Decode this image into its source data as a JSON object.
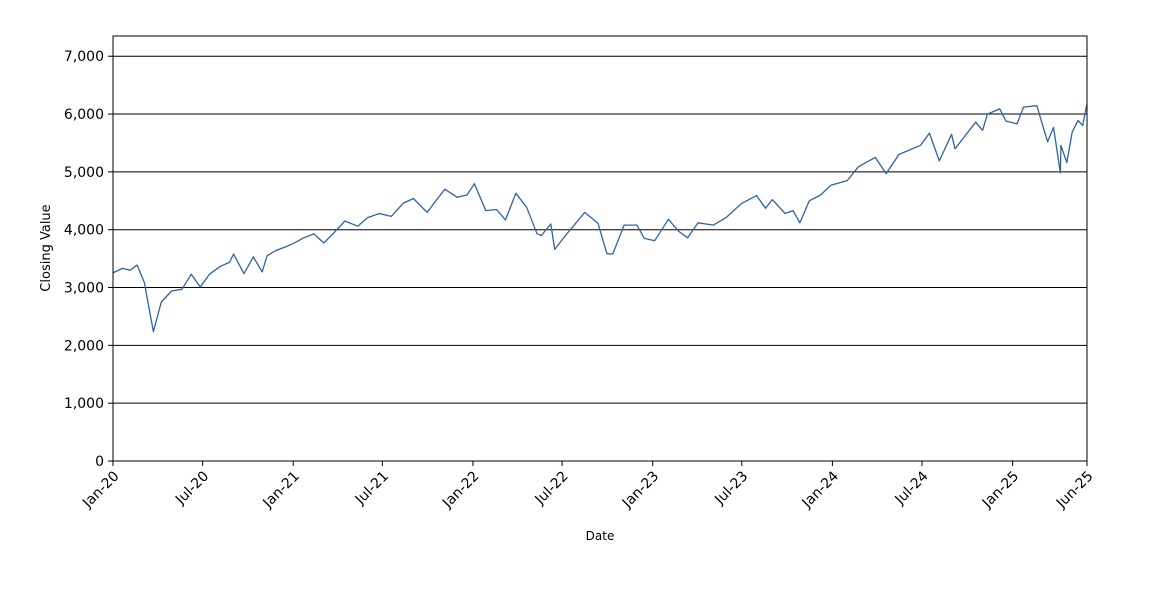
{
  "chart_data": {
    "type": "line",
    "title": "",
    "xlabel": "Date",
    "ylabel": "Closing Value",
    "xlim": [
      "2020-01-01",
      "2025-06-01"
    ],
    "ylim": [
      0,
      7350
    ],
    "grid": "horizontal",
    "legend": "none",
    "y_ticks": [
      0,
      1000,
      2000,
      3000,
      4000,
      5000,
      6000,
      7000
    ],
    "y_tick_labels": [
      "0",
      "1,000",
      "2,000",
      "3,000",
      "4,000",
      "5,000",
      "6,000",
      "7,000"
    ],
    "x_ticks": [
      "2020-01-01",
      "2020-07-01",
      "2021-01-01",
      "2021-07-01",
      "2022-01-01",
      "2022-07-01",
      "2023-01-01",
      "2023-07-01",
      "2024-01-01",
      "2024-07-01",
      "2025-01-01",
      "2025-06-01"
    ],
    "x_tick_labels": [
      "Jan-20",
      "Jul-20",
      "Jan-21",
      "Jul-21",
      "Jan-22",
      "Jul-22",
      "Jan-23",
      "Jul-23",
      "Jan-24",
      "Jul-24",
      "Jan-25",
      "Jun-25"
    ],
    "series": [
      {
        "color": "#2e63a8",
        "x": [
          "2020-01-02",
          "2020-01-20",
          "2020-02-05",
          "2020-02-19",
          "2020-03-05",
          "2020-03-12",
          "2020-03-23",
          "2020-04-08",
          "2020-04-29",
          "2020-05-20",
          "2020-06-08",
          "2020-06-26",
          "2020-07-15",
          "2020-08-05",
          "2020-08-25",
          "2020-09-02",
          "2020-09-23",
          "2020-10-12",
          "2020-10-30",
          "2020-11-09",
          "2020-11-27",
          "2020-12-15",
          "2020-12-31",
          "2021-01-20",
          "2021-02-12",
          "2021-03-04",
          "2021-03-25",
          "2021-04-16",
          "2021-05-12",
          "2021-06-01",
          "2021-06-25",
          "2021-07-19",
          "2021-08-13",
          "2021-09-02",
          "2021-09-30",
          "2021-10-15",
          "2021-11-05",
          "2021-11-30",
          "2021-12-20",
          "2022-01-04",
          "2022-01-27",
          "2022-02-18",
          "2022-03-08",
          "2022-03-29",
          "2022-04-20",
          "2022-05-11",
          "2022-05-20",
          "2022-06-08",
          "2022-06-16",
          "2022-07-08",
          "2022-08-16",
          "2022-09-12",
          "2022-09-30",
          "2022-10-12",
          "2022-11-04",
          "2022-11-30",
          "2022-12-15",
          "2023-01-05",
          "2023-02-02",
          "2023-02-23",
          "2023-03-13",
          "2023-04-03",
          "2023-05-04",
          "2023-05-30",
          "2023-06-30",
          "2023-07-31",
          "2023-08-18",
          "2023-09-01",
          "2023-09-27",
          "2023-10-13",
          "2023-10-27",
          "2023-11-15",
          "2023-12-08",
          "2023-12-29",
          "2024-01-31",
          "2024-02-23",
          "2024-03-28",
          "2024-04-19",
          "2024-05-15",
          "2024-06-28",
          "2024-07-16",
          "2024-08-05",
          "2024-08-30",
          "2024-09-06",
          "2024-10-18",
          "2024-11-01",
          "2024-11-11",
          "2024-12-06",
          "2024-12-18",
          "2025-01-10",
          "2025-01-23",
          "2025-02-19",
          "2025-03-13",
          "2025-03-25",
          "2025-04-08",
          "2025-04-09",
          "2025-04-21",
          "2025-05-02",
          "2025-05-14",
          "2025-05-23",
          "2025-06-01"
        ],
        "values": [
          3258,
          3330,
          3300,
          3390,
          3080,
          2740,
          2237,
          2750,
          2940,
          2970,
          3230,
          3010,
          3230,
          3360,
          3440,
          3580,
          3240,
          3530,
          3270,
          3550,
          3640,
          3700,
          3756,
          3850,
          3930,
          3770,
          3950,
          4150,
          4060,
          4210,
          4280,
          4230,
          4460,
          4540,
          4300,
          4470,
          4700,
          4560,
          4600,
          4795,
          4330,
          4350,
          4170,
          4630,
          4390,
          3930,
          3900,
          4100,
          3660,
          3900,
          4300,
          4110,
          3585,
          3580,
          4080,
          4080,
          3850,
          3810,
          4180,
          3970,
          3860,
          4120,
          4080,
          4210,
          4450,
          4590,
          4370,
          4520,
          4280,
          4330,
          4120,
          4500,
          4600,
          4770,
          4850,
          5090,
          5250,
          4970,
          5300,
          5460,
          5670,
          5190,
          5650,
          5400,
          5860,
          5720,
          6000,
          6090,
          5880,
          5830,
          6120,
          6144,
          5520,
          5770,
          4980,
          5460,
          5160,
          5690,
          5890,
          5800,
          6180
        ]
      }
    ]
  }
}
